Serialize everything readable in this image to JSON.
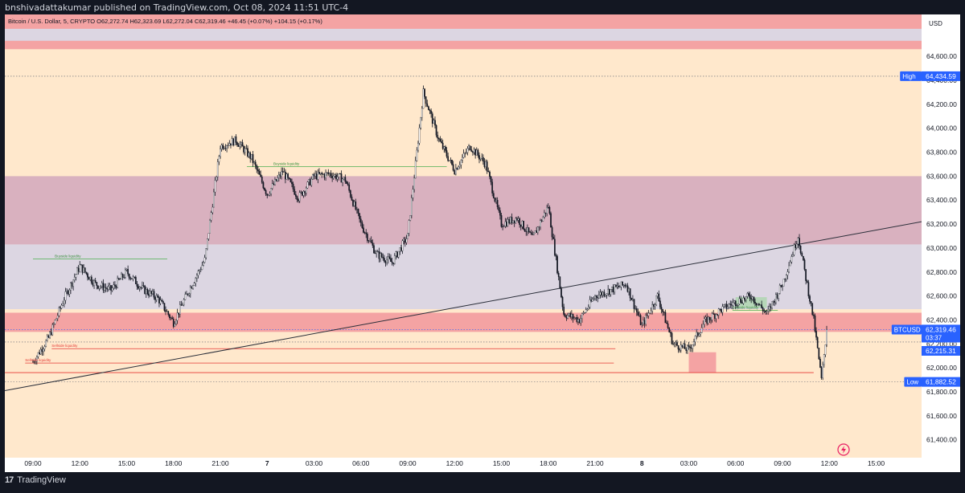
{
  "publisher_line": "bnshivadattakumar published on TradingView.com, Oct 08, 2024 11:51 UTC-4",
  "symbol_line": "Bitcoin / U.S. Dollar, 5, CRYPTO  O62,272.74  H62,323.69  L62,272.04  C62,319.46  +46.45 (+0.07%)  +104.15 (+0.17%)",
  "brand": "TradingView",
  "colors": {
    "background": "#ffe8cc",
    "axis_background": "#ffffff",
    "candle": "#131722",
    "zone_red": "#f4a3a3",
    "zone_maroon": "#d9b1bf",
    "zone_lavender": "#dcd6e2",
    "label_blue": "#2962ff"
  },
  "chart_data": {
    "type": "candlestick",
    "currency": "USD",
    "ylim": [
      61250,
      64950
    ],
    "y_ticks": [
      "64,600.00",
      "64,400.00",
      "64,200.00",
      "64,000.00",
      "63,800.00",
      "63,600.00",
      "63,400.00",
      "63,200.00",
      "63,000.00",
      "62,800.00",
      "62,600.00",
      "62,400.00",
      "62,200.00",
      "62,000.00",
      "61,800.00",
      "61,600.00",
      "61,400.00"
    ],
    "x_ticks": [
      "09:00",
      "12:00",
      "15:00",
      "18:00",
      "21:00",
      "7",
      "03:00",
      "06:00",
      "09:00",
      "12:00",
      "15:00",
      "18:00",
      "21:00",
      "8",
      "03:00",
      "06:00",
      "09:00",
      "12:00",
      "15:00"
    ],
    "price_path": [
      [
        "09:00",
        62050
      ],
      [
        "10:00",
        62250
      ],
      [
        "11:00",
        62580
      ],
      [
        "12:00",
        62850
      ],
      [
        "13:00",
        62700
      ],
      [
        "14:00",
        62650
      ],
      [
        "15:00",
        62800
      ],
      [
        "16:00",
        62660
      ],
      [
        "17:00",
        62580
      ],
      [
        "18:00",
        62380
      ],
      [
        "19:00",
        62650
      ],
      [
        "20:00",
        62900
      ],
      [
        "21:00",
        63850
      ],
      [
        "22:00",
        63900
      ],
      [
        "23:00",
        63750
      ],
      [
        "00:00",
        63450
      ],
      [
        "01:00",
        63640
      ],
      [
        "02:00",
        63420
      ],
      [
        "03:00",
        63600
      ],
      [
        "04:00",
        63620
      ],
      [
        "05:00",
        63570
      ],
      [
        "06:00",
        63200
      ],
      [
        "07:00",
        62950
      ],
      [
        "08:00",
        62880
      ],
      [
        "09:00",
        63100
      ],
      [
        "10:00",
        64300
      ],
      [
        "11:00",
        63900
      ],
      [
        "12:00",
        63650
      ],
      [
        "13:00",
        63850
      ],
      [
        "14:00",
        63700
      ],
      [
        "15:00",
        63200
      ],
      [
        "16:00",
        63250
      ],
      [
        "17:00",
        63080
      ],
      [
        "18:00",
        63350
      ],
      [
        "19:00",
        62450
      ],
      [
        "20:00",
        62400
      ],
      [
        "21:00",
        62600
      ],
      [
        "22:00",
        62650
      ],
      [
        "23:00",
        62700
      ],
      [
        "00:00",
        62350
      ],
      [
        "01:00",
        62600
      ],
      [
        "02:00",
        62200
      ],
      [
        "03:00",
        62150
      ],
      [
        "04:00",
        62380
      ],
      [
        "05:00",
        62480
      ],
      [
        "06:00",
        62550
      ],
      [
        "07:00",
        62600
      ],
      [
        "08:00",
        62450
      ],
      [
        "09:00",
        62700
      ],
      [
        "10:00",
        63100
      ],
      [
        "11:00",
        62400
      ],
      [
        "11:30",
        61900
      ],
      [
        "11:50",
        62319.46
      ]
    ],
    "zones": [
      {
        "color": "red",
        "top": 64950,
        "bottom": 64660
      },
      {
        "color": "lavender",
        "top": 64830,
        "bottom": 64730
      },
      {
        "color": "maroon",
        "top": 63600,
        "bottom": 63030
      },
      {
        "color": "lavender",
        "top": 63030,
        "bottom": 62490
      },
      {
        "color": "red",
        "top": 62460,
        "bottom": 62300
      },
      {
        "color": "red",
        "top": 62130,
        "bottom": 61960,
        "start": "8 03:00",
        "end": "8 04:45"
      },
      {
        "color": "green",
        "top": 62590,
        "bottom": 62500,
        "start": "8 06:00",
        "end": "8 08:00"
      }
    ],
    "trendline": {
      "start": [
        "09:00",
        61810
      ],
      "end": [
        "8 16:00",
        63220
      ]
    },
    "annotations": [
      {
        "text": "Buyside liquidity",
        "price": 62910
      },
      {
        "text": "Buyside liquidity",
        "price": 63680
      },
      {
        "text": "Buyside liquidity",
        "price": 62480
      },
      {
        "text": "Sellside liquidity",
        "price": 62160
      },
      {
        "text": "Sellside liquidity",
        "price": 62040
      }
    ],
    "levels": {
      "high": {
        "label": "High",
        "value": "64,434.59",
        "price": 64434.59
      },
      "low": {
        "label": "Low",
        "value": "61,882.52",
        "price": 61882.52
      },
      "last": {
        "label": "BTCUSD",
        "value": "62,319.46",
        "countdown": "03:37",
        "price": 62319.46
      },
      "other": {
        "value": "62,215.31",
        "price": 62215.31
      }
    }
  }
}
